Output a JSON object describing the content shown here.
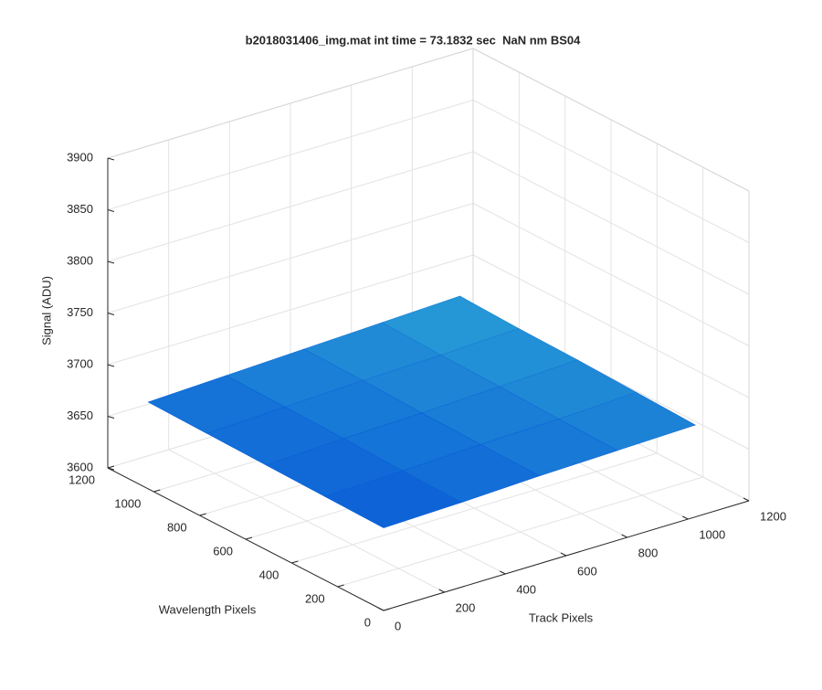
{
  "chart_data": {
    "type": "surface",
    "title": "b2018031406_img.mat int time = 73.1832 sec  NaN nm BS04",
    "x_label": "Track Pixels",
    "y_label": "Wavelength Pixels",
    "z_label": "Signal (ADU)",
    "x": [
      0,
      256,
      512,
      768,
      1024
    ],
    "y": [
      0,
      256,
      512,
      768,
      1024
    ],
    "z": [
      [
        3680,
        3682,
        3685,
        3687,
        3689
      ],
      [
        3681,
        3683,
        3686,
        3688,
        3691
      ],
      [
        3682,
        3685,
        3687,
        3690,
        3693
      ],
      [
        3683,
        3686,
        3689,
        3691,
        3694
      ],
      [
        3684,
        3687,
        3690,
        3693,
        3696
      ]
    ],
    "xlim": [
      0,
      1200
    ],
    "ylim": [
      0,
      1200
    ],
    "zlim": [
      3600,
      3900
    ],
    "xticks": [
      0,
      200,
      400,
      600,
      800,
      1000,
      1200
    ],
    "yticks": [
      0,
      200,
      400,
      600,
      800,
      1000,
      1200
    ],
    "zticks": [
      3600,
      3650,
      3700,
      3750,
      3800,
      3850,
      3900
    ],
    "grid": true,
    "colormap": [
      "#0b5ed7",
      "#2aa0d6"
    ]
  }
}
